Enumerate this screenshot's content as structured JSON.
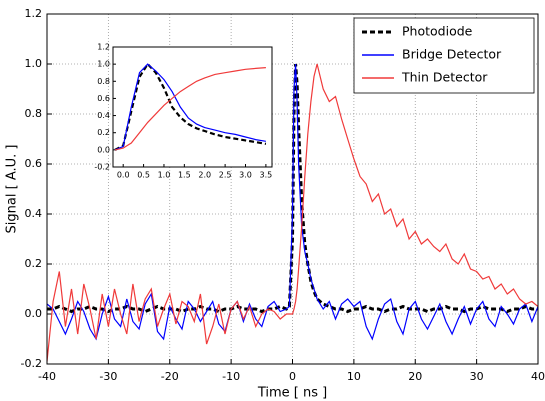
{
  "chart_data": [
    {
      "type": "line",
      "xlabel": "Time [ ns ]",
      "ylabel": "Signal [ A.U. ]",
      "xlim": [
        -40,
        40
      ],
      "ylim": [
        -0.2,
        1.2
      ],
      "xticks": [
        -40,
        -30,
        -20,
        -10,
        0,
        10,
        20,
        30,
        40
      ],
      "yticks": [
        -0.2,
        {
          "value": 0,
          "label": "0.0"
        },
        0.2,
        0.4,
        0.6,
        0.8,
        {
          "value": 1,
          "label": "1.0"
        },
        1.2
      ],
      "grid": true,
      "legend": "upper right",
      "x": [
        -40,
        -39,
        -38,
        -37,
        -36,
        -35,
        -34,
        -33,
        -32,
        -31,
        -30,
        -29,
        -28,
        -27,
        -26,
        -25,
        -24,
        -23,
        -22,
        -21,
        -20,
        -19,
        -18,
        -17,
        -16,
        -15,
        -14,
        -13,
        -12,
        -11,
        -10,
        -9,
        -8,
        -7,
        -6,
        -5,
        -4,
        -3,
        -2,
        -1,
        -0.5,
        0,
        0.25,
        0.5,
        0.75,
        1,
        1.5,
        2,
        2.5,
        3,
        3.5,
        4,
        5,
        6,
        7,
        8,
        9,
        10,
        11,
        12,
        13,
        14,
        15,
        16,
        17,
        18,
        19,
        20,
        21,
        22,
        23,
        24,
        25,
        26,
        27,
        28,
        29,
        30,
        31,
        32,
        33,
        34,
        35,
        36,
        37,
        38,
        39,
        40
      ],
      "series": [
        {
          "name": "Photodiode",
          "color": "#000000",
          "dashed": true,
          "values": [
            0.02,
            0.02,
            0.03,
            0.02,
            0.01,
            0.02,
            0.02,
            0.03,
            0.02,
            0.02,
            0.01,
            0.02,
            0.02,
            0.03,
            0.02,
            0.02,
            0.01,
            0.02,
            0.03,
            0.02,
            0.02,
            0.02,
            0.01,
            0.02,
            0.02,
            0.03,
            0.02,
            0.02,
            0.01,
            0.02,
            0.02,
            0.03,
            0.02,
            0.02,
            0.02,
            0.01,
            0.02,
            0.02,
            0.03,
            0.02,
            0.03,
            0.3,
            0.8,
            1.0,
            0.92,
            0.75,
            0.45,
            0.28,
            0.2,
            0.13,
            0.09,
            0.06,
            0.04,
            0.03,
            0.02,
            0.02,
            0.01,
            0.02,
            0.02,
            0.03,
            0.02,
            0.02,
            0.01,
            0.02,
            0.02,
            0.03,
            0.02,
            0.02,
            0.02,
            0.01,
            0.02,
            0.02,
            0.03,
            0.02,
            0.02,
            0.01,
            0.02,
            0.02,
            0.03,
            0.02,
            0.02,
            0.02,
            0.01,
            0.02,
            0.02,
            0.03,
            0.02,
            0.02
          ]
        },
        {
          "name": "Bridge Detector",
          "color": "#0000ff",
          "values": [
            0.04,
            0.02,
            -0.03,
            -0.08,
            -0.02,
            0.05,
            0.01,
            -0.06,
            -0.1,
            0.0,
            0.07,
            -0.02,
            -0.05,
            0.06,
            -0.03,
            -0.06,
            0.04,
            0.08,
            -0.07,
            -0.1,
            0.03,
            -0.02,
            -0.06,
            0.05,
            0.02,
            -0.03,
            0.01,
            0.05,
            -0.04,
            -0.07,
            0.02,
            0.05,
            -0.03,
            0.04,
            -0.02,
            -0.05,
            0.03,
            0.05,
            0.01,
            0.02,
            0.03,
            0.4,
            0.9,
            1.0,
            0.85,
            0.6,
            0.35,
            0.25,
            0.2,
            0.14,
            0.1,
            0.06,
            0.02,
            0.05,
            -0.02,
            0.04,
            0.06,
            0.03,
            0.05,
            -0.05,
            -0.1,
            -0.02,
            0.04,
            0.06,
            -0.03,
            -0.08,
            0.02,
            0.05,
            -0.02,
            -0.06,
            -0.01,
            0.04,
            -0.03,
            -0.08,
            -0.02,
            0.03,
            -0.04,
            0.02,
            0.05,
            -0.02,
            -0.05,
            0.03,
            0.0,
            -0.04,
            0.02,
            0.04,
            -0.03,
            0.03
          ]
        },
        {
          "name": "Thin Detector",
          "color": "#f03a3a",
          "values": [
            -0.19,
            0.05,
            0.17,
            -0.05,
            0.1,
            -0.08,
            0.12,
            0.02,
            -0.1,
            0.08,
            -0.05,
            0.1,
            0.0,
            -0.08,
            0.12,
            -0.03,
            0.06,
            0.1,
            -0.05,
            0.02,
            0.08,
            -0.04,
            0.05,
            0.03,
            -0.03,
            0.08,
            -0.12,
            -0.05,
            0.04,
            -0.08,
            0.02,
            0.05,
            -0.02,
            0.03,
            -0.05,
            0.0,
            0.02,
            0.01,
            -0.02,
            0.0,
            0.0,
            0.0,
            0.02,
            0.05,
            0.1,
            0.18,
            0.35,
            0.55,
            0.72,
            0.85,
            0.95,
            1.0,
            0.9,
            0.85,
            0.87,
            0.78,
            0.7,
            0.62,
            0.55,
            0.52,
            0.45,
            0.48,
            0.4,
            0.42,
            0.35,
            0.38,
            0.3,
            0.33,
            0.28,
            0.3,
            0.27,
            0.25,
            0.28,
            0.22,
            0.2,
            0.24,
            0.18,
            0.17,
            0.14,
            0.15,
            0.1,
            0.12,
            0.08,
            0.1,
            0.06,
            0.04,
            0.05,
            0.03
          ]
        }
      ]
    },
    {
      "type": "line",
      "xlim": [
        -0.25,
        3.65
      ],
      "ylim": [
        -0.2,
        1.2
      ],
      "xticks": [
        {
          "value": 0,
          "label": "0.0"
        },
        0.5,
        {
          "value": 1,
          "label": "1.0"
        },
        1.5,
        {
          "value": 2,
          "label": "2.0"
        },
        2.5,
        {
          "value": 3,
          "label": "3.0"
        },
        3.5
      ],
      "yticks": [
        -0.2,
        {
          "value": 0,
          "label": "0.0"
        },
        0.2,
        0.4,
        0.6,
        0.8,
        {
          "value": 1,
          "label": "1.0"
        },
        1.2
      ],
      "grid": false,
      "x": [
        -0.2,
        0,
        0.2,
        0.4,
        0.6,
        0.8,
        1.0,
        1.2,
        1.4,
        1.6,
        1.8,
        2.0,
        2.25,
        2.5,
        2.75,
        3.0,
        3.25,
        3.5
      ],
      "series": [
        {
          "name": "Photodiode",
          "color": "#000000",
          "dashed": true,
          "values": [
            0.0,
            0.05,
            0.45,
            0.85,
            1.0,
            0.9,
            0.72,
            0.5,
            0.38,
            0.3,
            0.25,
            0.22,
            0.18,
            0.15,
            0.13,
            0.11,
            0.09,
            0.07
          ]
        },
        {
          "name": "Bridge Detector",
          "color": "#0000ff",
          "values": [
            0.0,
            0.04,
            0.5,
            0.9,
            1.0,
            0.92,
            0.82,
            0.68,
            0.5,
            0.37,
            0.3,
            0.26,
            0.23,
            0.2,
            0.18,
            0.15,
            0.12,
            0.1
          ]
        },
        {
          "name": "Thin Detector",
          "color": "#f03a3a",
          "values": [
            0.0,
            0.02,
            0.08,
            0.2,
            0.32,
            0.42,
            0.52,
            0.6,
            0.68,
            0.74,
            0.8,
            0.84,
            0.88,
            0.9,
            0.92,
            0.94,
            0.95,
            0.96
          ]
        }
      ]
    }
  ]
}
